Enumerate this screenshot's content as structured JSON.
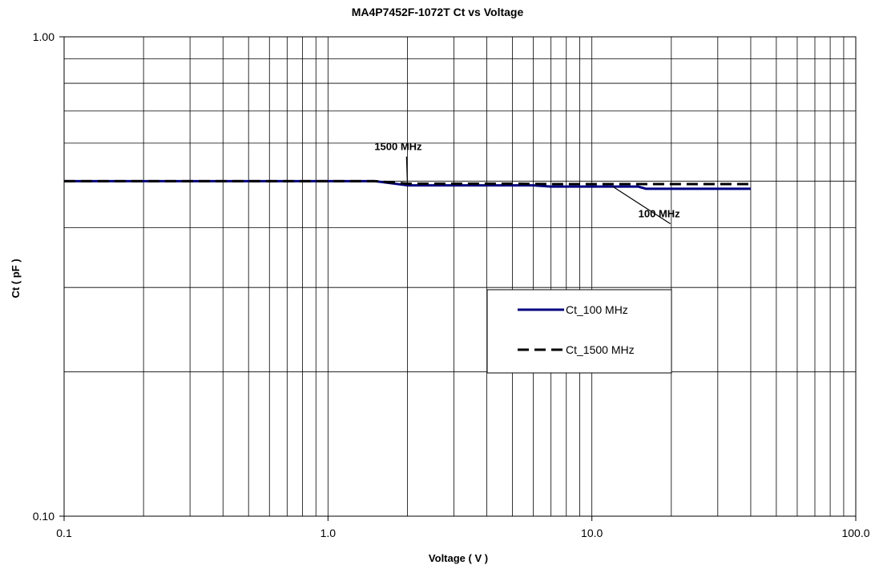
{
  "chart_data": {
    "type": "line",
    "title": "MA4P7452F-1072T Ct vs Voltage",
    "xlabel": "Voltage ( V )",
    "ylabel": "Ct ( pF )",
    "x_scale": "log",
    "y_scale": "log",
    "xlim": [
      0.1,
      100.0
    ],
    "ylim": [
      0.1,
      1.0
    ],
    "x_ticks": [
      "0.1",
      "1.0",
      "10.0",
      "100.0"
    ],
    "y_ticks": [
      "0.10",
      "1.00"
    ],
    "grid": true,
    "series": [
      {
        "name": "Ct_100 MHz",
        "color": "#000080",
        "style": "solid",
        "x": [
          0.1,
          0.2,
          0.5,
          1.0,
          1.5,
          2.0,
          3.0,
          5.0,
          6.0,
          7.0,
          8.0,
          10.0,
          12.0,
          15.0,
          16.0,
          20.0,
          30.0,
          40.0
        ],
        "y": [
          0.5,
          0.5,
          0.5,
          0.5,
          0.5,
          0.49,
          0.49,
          0.49,
          0.49,
          0.487,
          0.487,
          0.487,
          0.487,
          0.487,
          0.482,
          0.482,
          0.482,
          0.482
        ]
      },
      {
        "name": "Ct_1500 MHz",
        "color": "#000000",
        "style": "dashed",
        "x": [
          0.1,
          0.2,
          0.5,
          1.0,
          1.5,
          2.0,
          3.0,
          5.0,
          7.0,
          10.0,
          15.0,
          20.0,
          30.0,
          40.0
        ],
        "y": [
          0.5,
          0.5,
          0.5,
          0.5,
          0.5,
          0.494,
          0.494,
          0.494,
          0.493,
          0.493,
          0.493,
          0.493,
          0.493,
          0.493
        ]
      }
    ],
    "annotations": [
      {
        "text": "1500 MHz",
        "x": 2.0,
        "y": 0.494,
        "text_x": 1.5,
        "text_y": 0.58
      },
      {
        "text": "100 MHz",
        "x": 12.0,
        "y": 0.487,
        "text_x": 15.0,
        "text_y": 0.42
      }
    ],
    "legend": {
      "placement": "center-right",
      "entries": [
        "Ct_100 MHz",
        "Ct_1500 MHz"
      ]
    }
  }
}
